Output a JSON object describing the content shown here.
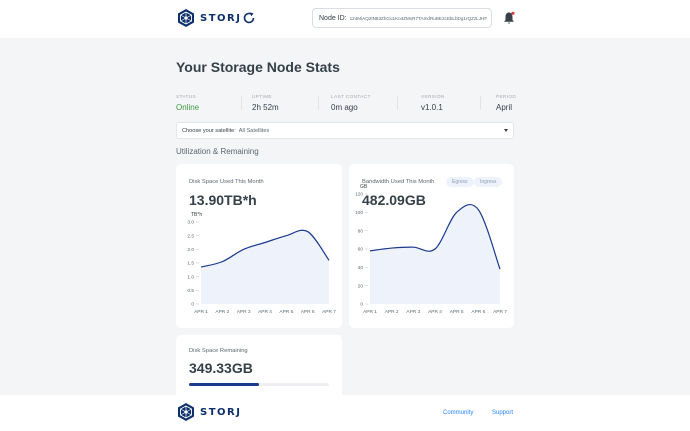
{
  "header": {
    "logo_text": "STORJ",
    "node_id_label": "Node ID:",
    "node_id_value": "124MiAQ2tN83ZhGu1Ko4ZMvR7TAmdRuBE2cEbLbDg1rQZzLJHF"
  },
  "page_title": "Your Storage Node Stats",
  "stats": [
    {
      "label": "STATUS",
      "value": "Online"
    },
    {
      "label": "UPTIME",
      "value": "2h 52m"
    },
    {
      "label": "LAST CONTACT",
      "value": "0m ago"
    },
    {
      "label": "VERSION",
      "value": "v1.0.1"
    },
    {
      "label": "PERIOD",
      "value": "April"
    }
  ],
  "satellite_select": {
    "label": "Choose your satellite:",
    "value": "All Satellites"
  },
  "section_title": "Utilization & Remaining",
  "disk_card": {
    "title": "Disk Space Used This Month",
    "value": "13.90TB*h"
  },
  "bandwidth_card": {
    "title": "Bandwidth Used This Month",
    "value": "482.09GB",
    "tabs": [
      "Egress",
      "Ingress"
    ]
  },
  "remaining_card": {
    "title": "Disk Space Remaining",
    "value": "349.33GB",
    "used_fraction": 0.5
  },
  "footer": {
    "logo_text": "STORJ",
    "links": [
      "Community",
      "Support"
    ]
  },
  "colors": {
    "accent": "#1a3a8c",
    "online": "#3f9a3f",
    "link": "#2683ff",
    "chart_fill": "#eef2fb"
  },
  "chart_data": [
    {
      "type": "area",
      "ylabel": "TB*h",
      "categories": [
        "APR 1",
        "APR 2",
        "APR 3",
        "APR 4",
        "APR 5",
        "APR 6",
        "APR 7"
      ],
      "yticks": [
        "0",
        "0.5",
        "1.0",
        "1.5",
        "2.0",
        "2.5",
        "3.0"
      ],
      "ylim": [
        0,
        3.0
      ],
      "values": [
        1.35,
        1.55,
        2.0,
        2.25,
        2.5,
        2.65,
        1.6
      ]
    },
    {
      "type": "area",
      "ylabel": "GB",
      "categories": [
        "APR 1",
        "APR 2",
        "APR 3",
        "APR 4",
        "APR 5",
        "APR 6",
        "APR 7"
      ],
      "yticks": [
        "0",
        "20",
        "40",
        "60",
        "80",
        "100",
        "120"
      ],
      "ylim": [
        0,
        120
      ],
      "values": [
        58,
        61,
        62,
        60,
        100,
        103,
        38
      ]
    }
  ]
}
